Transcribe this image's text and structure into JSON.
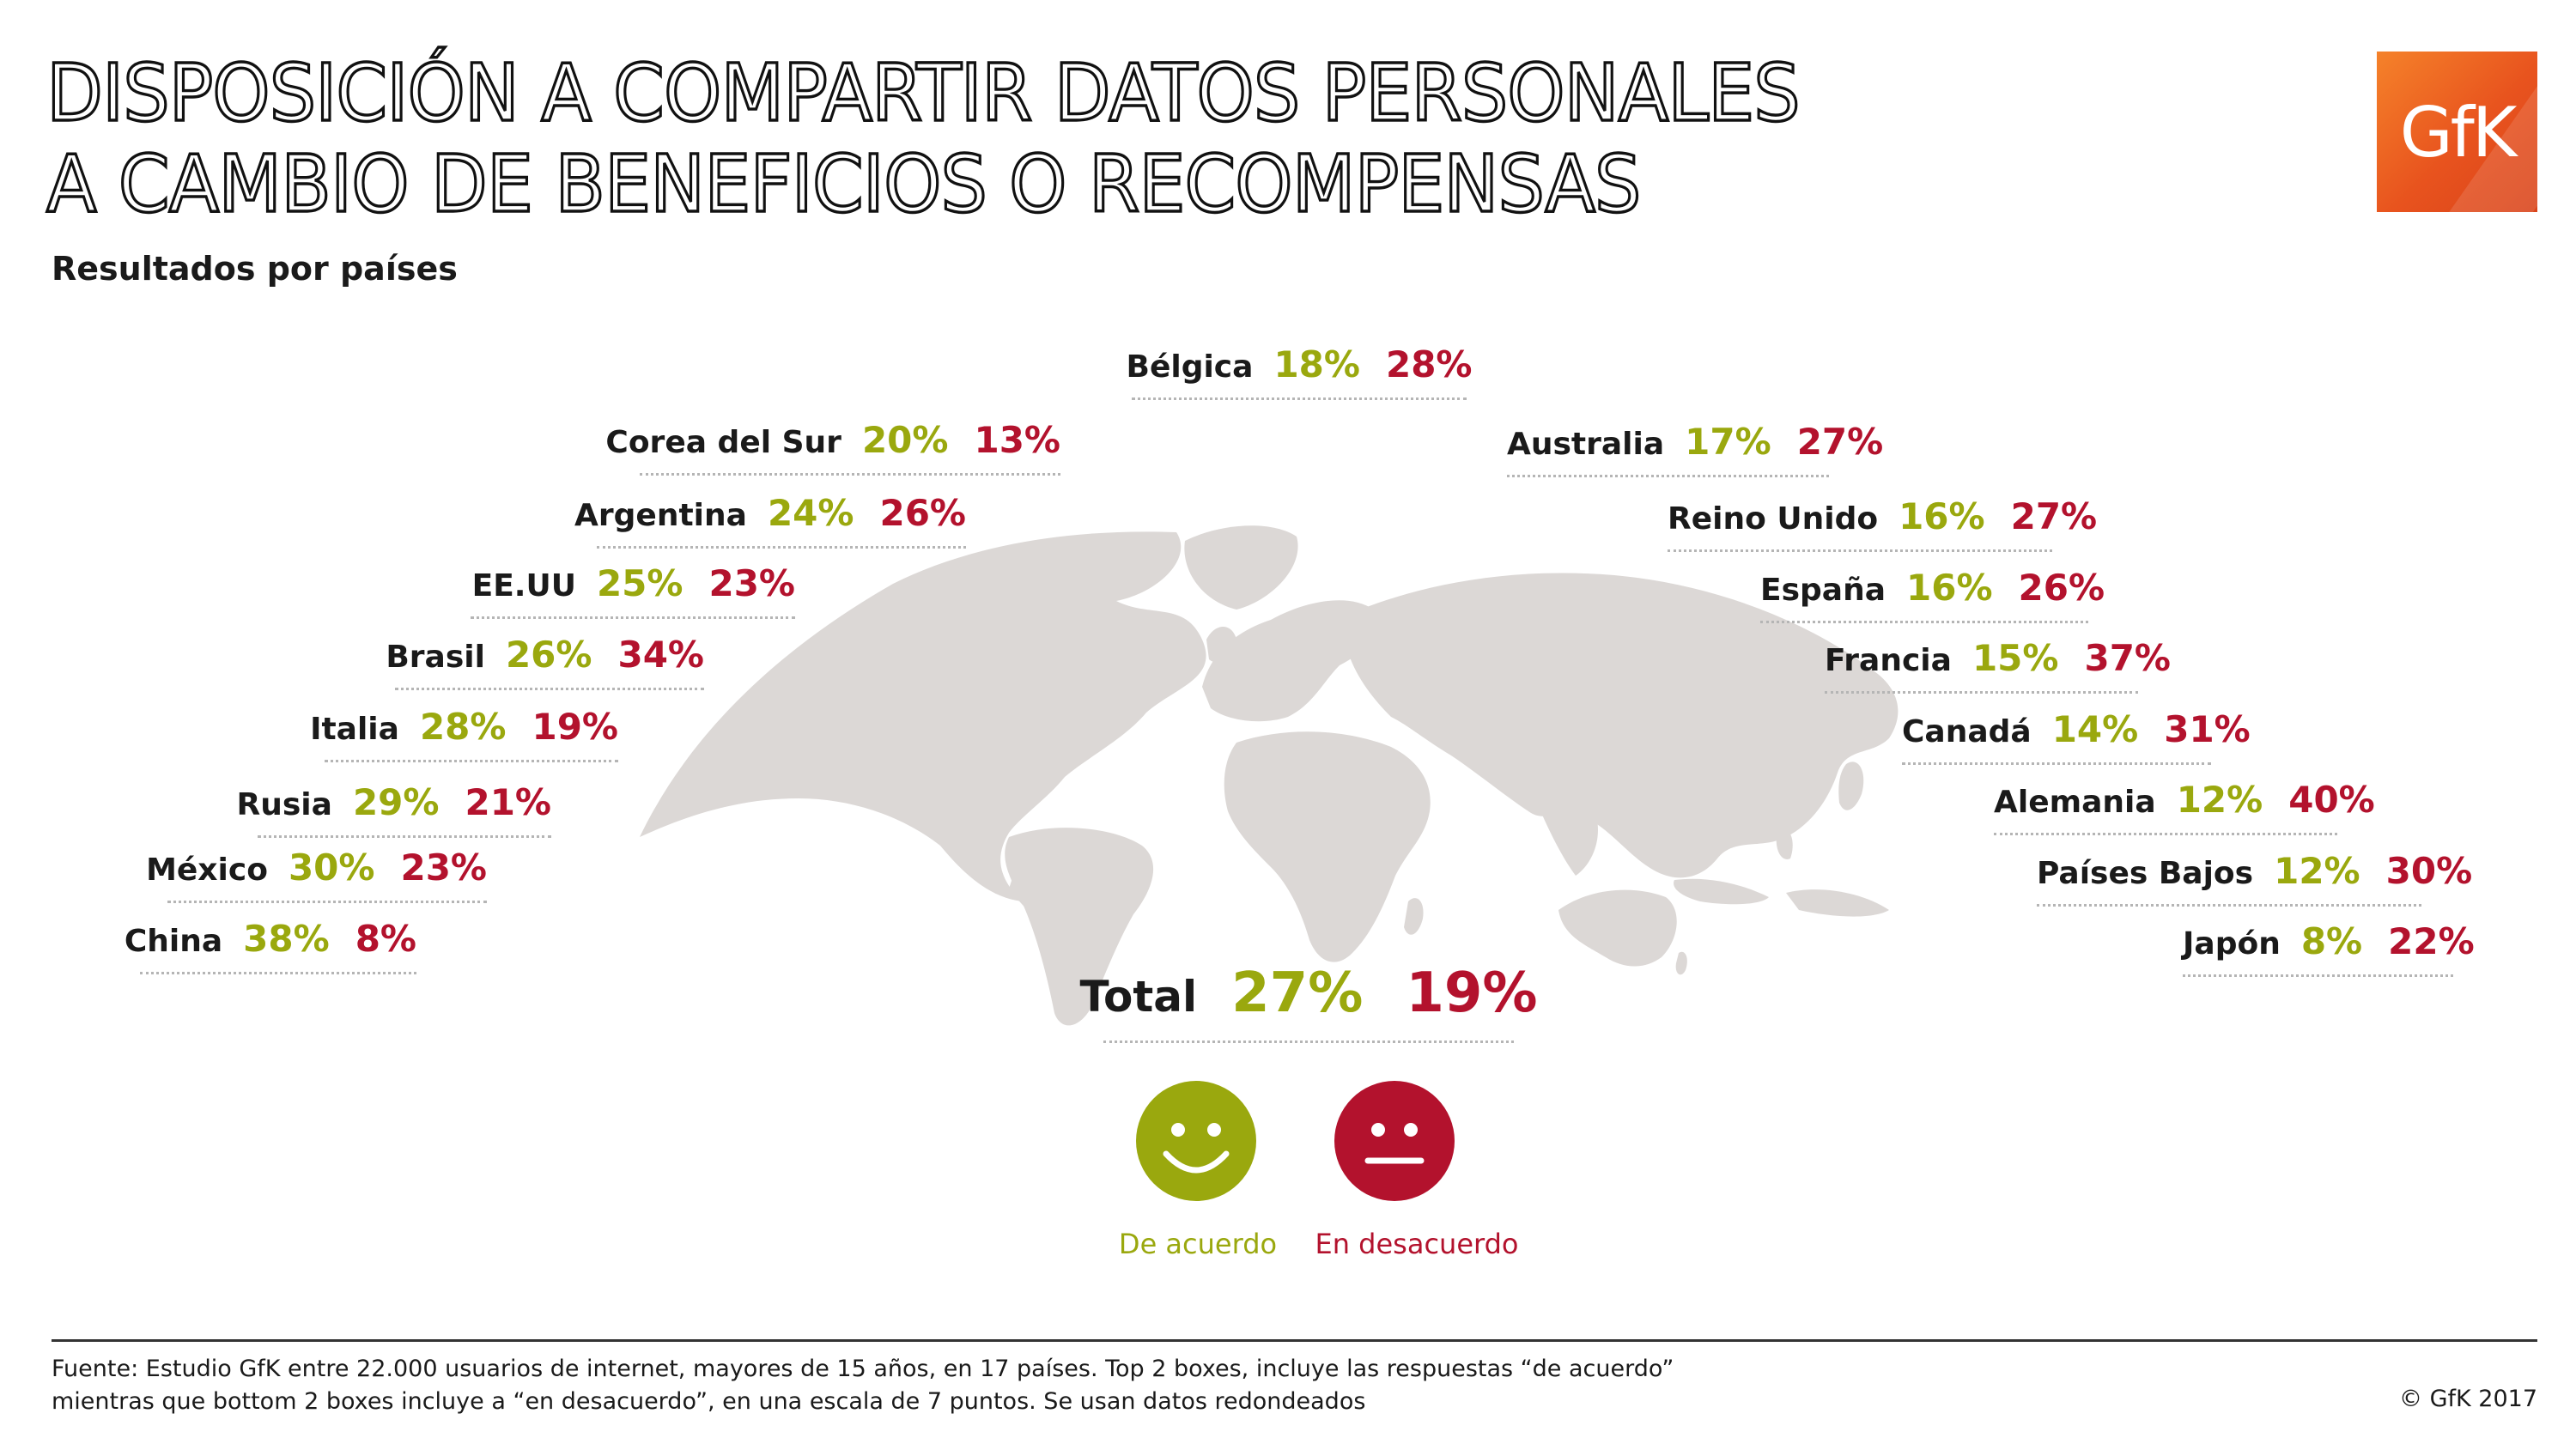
{
  "title": {
    "line1": "DISPOSICIÓN A COMPARTIR DATOS PERSONALES",
    "line2": "A CAMBIO DE BENEFICIOS O RECOMPENSAS"
  },
  "subtitle": "Resultados por países",
  "logo_text": "GfK",
  "icons": {
    "agree": "happy-face-icon",
    "disagree": "neutral-face-icon",
    "map": "world-map"
  },
  "colors": {
    "agree": "#9aa80e",
    "disagree": "#b3122d",
    "map": "#dcd8d6",
    "logo": "#e8531e"
  },
  "countries_left": [
    {
      "name": "Corea del Sur",
      "agree": "20%",
      "disagree": "13%"
    },
    {
      "name": "Argentina",
      "agree": "24%",
      "disagree": "26%"
    },
    {
      "name": "EE.UU",
      "agree": "25%",
      "disagree": "23%"
    },
    {
      "name": "Brasil",
      "agree": "26%",
      "disagree": "34%"
    },
    {
      "name": "Italia",
      "agree": "28%",
      "disagree": "19%"
    },
    {
      "name": "Rusia",
      "agree": "29%",
      "disagree": "21%"
    },
    {
      "name": "México",
      "agree": "30%",
      "disagree": "23%"
    },
    {
      "name": "China",
      "agree": "38%",
      "disagree": "8%"
    }
  ],
  "country_center": {
    "name": "Bélgica",
    "agree": "18%",
    "disagree": "28%"
  },
  "countries_right": [
    {
      "name": "Australia",
      "agree": "17%",
      "disagree": "27%"
    },
    {
      "name": "Reino Unido",
      "agree": "16%",
      "disagree": "27%"
    },
    {
      "name": "España",
      "agree": "16%",
      "disagree": "26%"
    },
    {
      "name": "Francia",
      "agree": "15%",
      "disagree": "37%"
    },
    {
      "name": "Canadá",
      "agree": "14%",
      "disagree": "31%"
    },
    {
      "name": "Alemania",
      "agree": "12%",
      "disagree": "40%"
    },
    {
      "name": "Países Bajos",
      "agree": "12%",
      "disagree": "30%"
    },
    {
      "name": "Japón",
      "agree": "8%",
      "disagree": "22%"
    }
  ],
  "total": {
    "name": "Total",
    "agree": "27%",
    "disagree": "19%"
  },
  "legend": {
    "agree": "De acuerdo",
    "disagree": "En desacuerdo"
  },
  "footer": {
    "source_line1": "Fuente: Estudio GfK entre 22.000 usuarios de internet, mayores de 15 años, en 17 países. Top 2 boxes, incluye las respuestas “de acuerdo”",
    "source_line2": "mientras que bottom 2 boxes incluye a “en desacuerdo”, en una escala de 7 puntos. Se usan datos redondeados",
    "copyright": "© GfK 2017"
  }
}
